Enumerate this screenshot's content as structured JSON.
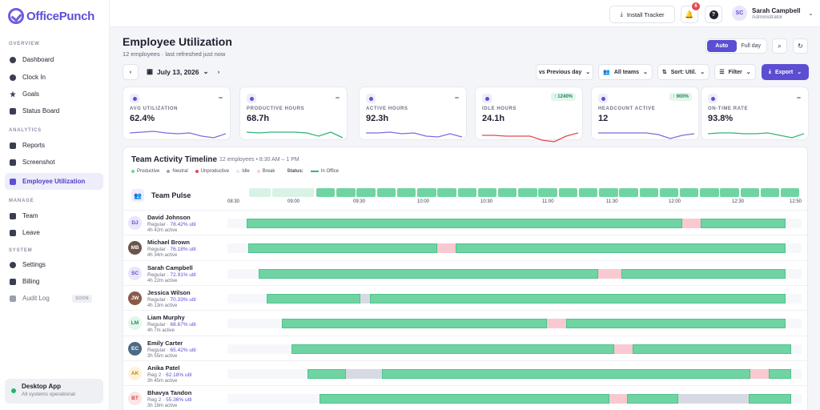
{
  "app": {
    "name": "OfficePunch"
  },
  "colors": {
    "accent": "#5b4ed3",
    "productive": "#6fd4a2",
    "neutral": "#d7dae3",
    "unproductive": "#e5484d",
    "break": "#f9c9d1",
    "online": "#22b573"
  },
  "sidebar": {
    "sections": [
      "OVERVIEW",
      "ANALYTICS",
      "MANAGE",
      "SYSTEM"
    ],
    "items": [
      {
        "label": "Dashboard",
        "icon": "dashboard-icon"
      },
      {
        "label": "Clock In",
        "icon": "clock-icon"
      },
      {
        "label": "Goals",
        "icon": "star-icon"
      },
      {
        "label": "Status Board",
        "icon": "board-icon"
      },
      {
        "label": "Reports",
        "icon": "chart-icon"
      },
      {
        "label": "Screenshot",
        "icon": "screenshot-icon"
      },
      {
        "label": "Employee Utilization",
        "icon": "team-icon",
        "active": true
      },
      {
        "label": "Team",
        "icon": "people-icon"
      },
      {
        "label": "Leave",
        "icon": "leave-icon"
      },
      {
        "label": "Settings",
        "icon": "gear-icon"
      },
      {
        "label": "Billing",
        "icon": "card-icon"
      },
      {
        "label": "Audit Log",
        "icon": "log-icon",
        "badge": "SOON"
      }
    ],
    "desktop": {
      "title": "Desktop App",
      "status": "All systems operational"
    }
  },
  "topbar": {
    "install_label": "Install Tracker",
    "notifications": "6",
    "help": "?",
    "user": {
      "initials": "SC",
      "name": "Sarah Campbell",
      "role": "Administrator"
    }
  },
  "page": {
    "title": "Employee Utilization",
    "subtitle": "12 employees · last refreshed just now",
    "mode": {
      "auto": "Auto",
      "full": "Full day"
    },
    "date": "July 13, 2026",
    "filters": {
      "compare": "vs Previous day",
      "teams": "All teams",
      "sort": "Sort: Util.",
      "filter": "Filter",
      "export": "Export"
    }
  },
  "cards": [
    {
      "label": "AVG UTILIZATION",
      "value": "62.4%",
      "color": "#7a6ce0"
    },
    {
      "label": "PRODUCTIVE HOURS",
      "value": "68.7h",
      "color": "#34b47a"
    },
    {
      "label": "ACTIVE HOURS",
      "value": "92.3h",
      "color": "#7a6ce0"
    },
    {
      "label": "IDLE HOURS",
      "value": "24.1h",
      "delta": "↑ 1240%",
      "color": "#e5484d"
    },
    {
      "label": "HEADCOUNT ACTIVE",
      "value": "12",
      "delta": "↑ 900%",
      "color": "#7a6ce0"
    },
    {
      "label": "ON-TIME RATE",
      "value": "93.8%",
      "color": "#34b47a"
    }
  ],
  "timeline": {
    "title": "Team Activity Timeline",
    "subtitle": "12 employees • 8:30 AM – 1 PM",
    "legend": {
      "productive": "Productive",
      "neutral": "Neutral",
      "unproductive": "Unproductive",
      "idle": "Idle",
      "break": "Break",
      "status": "Status:",
      "in_office": "In Office"
    },
    "pulse_label": "Team Pulse",
    "ticks": [
      "08:30",
      "09:00",
      "09:30",
      "10:00",
      "10:30",
      "11:00",
      "11:30",
      "12:00",
      "12:30",
      "12:50"
    ],
    "rows": [
      {
        "initials": "DJ",
        "name": "David Johnson",
        "type": "Regular",
        "util": "78.42% util",
        "active": "4h 42m active",
        "avbg": "#e8e6fb",
        "avfg": "#5b4ed3",
        "photo": false,
        "segs": [
          [
            0.033,
            0.792,
            "p"
          ],
          [
            0.792,
            0.824,
            "b"
          ],
          [
            0.824,
            0.972,
            "p"
          ]
        ]
      },
      {
        "initials": "MB",
        "name": "Michael Brown",
        "type": "Regular",
        "util": "76.18% util",
        "active": "4h 34m active",
        "avbg": "#6b5448",
        "avfg": "#fff",
        "photo": true,
        "segs": [
          [
            0.036,
            0.366,
            "p"
          ],
          [
            0.366,
            0.397,
            "b"
          ],
          [
            0.397,
            0.972,
            "p"
          ]
        ]
      },
      {
        "initials": "SC",
        "name": "Sarah Campbell",
        "type": "Regular",
        "util": "72.91% util",
        "active": "4h 22m active",
        "avbg": "#e8e6fb",
        "avfg": "#5b4ed3",
        "photo": false,
        "segs": [
          [
            0.055,
            0.646,
            "p"
          ],
          [
            0.646,
            0.686,
            "b"
          ],
          [
            0.686,
            0.972,
            "p"
          ]
        ]
      },
      {
        "initials": "JW",
        "name": "Jessica Wilson",
        "type": "Regular",
        "util": "70.33% util",
        "active": "4h 13m active",
        "avbg": "#8a5a48",
        "avfg": "#fff",
        "photo": true,
        "segs": [
          [
            0.069,
            0.232,
            "p"
          ],
          [
            0.232,
            0.248,
            "n"
          ],
          [
            0.248,
            0.972,
            "p"
          ]
        ]
      },
      {
        "initials": "LM",
        "name": "Liam Murphy",
        "type": "Regular",
        "util": "68.67% util",
        "active": "4h 7m active",
        "avbg": "#e3f6ec",
        "avfg": "#1f8a53",
        "photo": false,
        "segs": [
          [
            0.095,
            0.556,
            "p"
          ],
          [
            0.556,
            0.59,
            "b"
          ],
          [
            0.59,
            0.972,
            "p"
          ]
        ]
      },
      {
        "initials": "EC",
        "name": "Emily Carter",
        "type": "Regular",
        "util": "65.42% util",
        "active": "3h 55m active",
        "avbg": "#4b6a86",
        "avfg": "#fff",
        "photo": true,
        "segs": [
          [
            0.111,
            0.674,
            "p"
          ],
          [
            0.674,
            0.706,
            "b"
          ],
          [
            0.706,
            0.982,
            "p"
          ]
        ]
      },
      {
        "initials": "AK",
        "name": "Anika Patel",
        "type": "Reg 2",
        "util": "62.18% util",
        "active": "3h 45m active",
        "avbg": "#fff2d8",
        "avfg": "#c7851a",
        "photo": false,
        "segs": [
          [
            0.139,
            0.207,
            "p"
          ],
          [
            0.207,
            0.269,
            "n"
          ],
          [
            0.269,
            0.911,
            "p"
          ],
          [
            0.911,
            0.943,
            "b"
          ],
          [
            0.943,
            0.982,
            "p"
          ]
        ]
      },
      {
        "initials": "BT",
        "name": "Bhavya Tandon",
        "type": "Reg 2",
        "util": "55.36% util",
        "active": "3h 18m active",
        "avbg": "#fde5e5",
        "avfg": "#d04545",
        "photo": false,
        "segs": [
          [
            0.16,
            0.665,
            "p"
          ],
          [
            0.665,
            0.696,
            "b"
          ],
          [
            0.696,
            0.785,
            "p"
          ],
          [
            0.785,
            0.908,
            "n"
          ],
          [
            0.908,
            0.982,
            "p"
          ]
        ]
      }
    ]
  }
}
